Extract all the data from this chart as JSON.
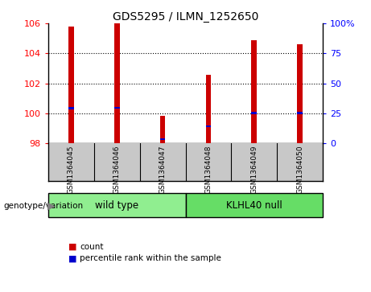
{
  "title": "GDS5295 / ILMN_1252650",
  "samples": [
    "GSM1364045",
    "GSM1364046",
    "GSM1364047",
    "GSM1364048",
    "GSM1364049",
    "GSM1364050"
  ],
  "count_values": [
    105.8,
    106.0,
    99.85,
    102.55,
    104.9,
    104.6
  ],
  "percentile_values": [
    100.35,
    100.38,
    98.28,
    99.15,
    100.02,
    100.02
  ],
  "ylim_left": [
    98,
    106
  ],
  "ylim_right": [
    0,
    100
  ],
  "yticks_left": [
    98,
    100,
    102,
    104,
    106
  ],
  "yticks_right": [
    0,
    25,
    50,
    75,
    100
  ],
  "ytick_labels_right": [
    "0",
    "25",
    "50",
    "75",
    "100%"
  ],
  "bar_color": "#CC0000",
  "percentile_color": "#0000CC",
  "bar_width": 0.12,
  "grid_color": "black",
  "bg_color": "#ffffff",
  "label_bg_color": "#C8C8C8",
  "group_labels": [
    "wild type",
    "KLHL40 null"
  ],
  "group_colors": [
    "#90EE90",
    "#66DD66"
  ],
  "genotype_label": "genotype/variation",
  "legend_items": [
    {
      "label": "count",
      "color": "#CC0000"
    },
    {
      "label": "percentile rank within the sample",
      "color": "#0000CC"
    }
  ]
}
